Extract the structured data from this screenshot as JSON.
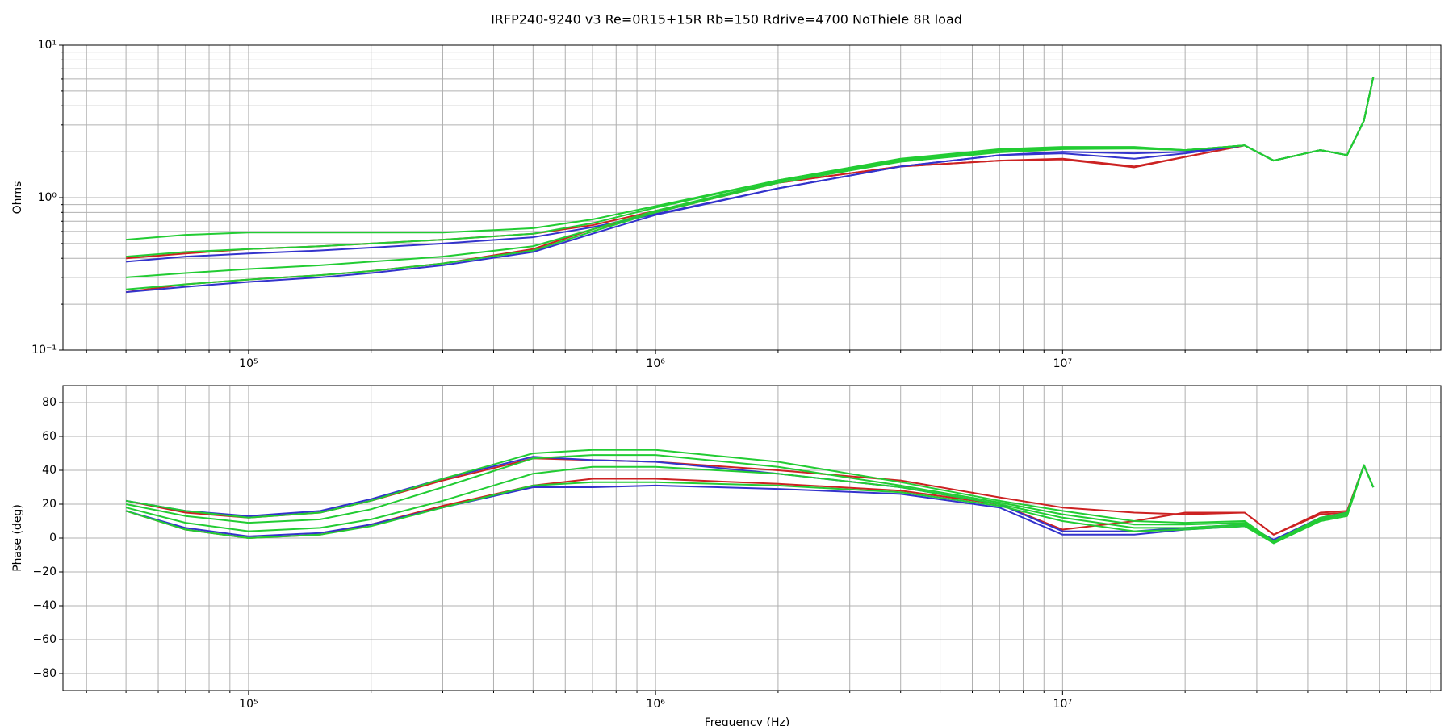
{
  "chart_data": [
    {
      "type": "line",
      "title": "IRFP240-9240 v3 Re=0R15+15R Rb=150 Rdrive=4700 NoThiele 8R load",
      "ylabel": "Ohms",
      "xlog": true,
      "ylog": true,
      "grid": true,
      "xlim": [
        35000,
        85000000
      ],
      "xticks": [
        {
          "value": 100000,
          "label": "10⁵"
        },
        {
          "value": 1000000,
          "label": "10⁶"
        },
        {
          "value": 10000000,
          "label": "10⁷"
        }
      ],
      "xminorticks": [
        40000,
        50000,
        60000,
        70000,
        80000,
        90000,
        200000,
        300000,
        400000,
        500000,
        600000,
        700000,
        800000,
        900000,
        2000000,
        3000000,
        4000000,
        5000000,
        6000000,
        7000000,
        8000000,
        9000000,
        20000000,
        30000000,
        40000000,
        50000000,
        60000000,
        70000000,
        80000000
      ],
      "ylim": [
        0.1,
        10
      ],
      "yticks": [
        {
          "value": 0.1,
          "label": "10⁻¹"
        },
        {
          "value": 1,
          "label": "10⁰"
        },
        {
          "value": 10,
          "label": "10¹"
        }
      ],
      "yminorticks": [
        0.2,
        0.3,
        0.4,
        0.5,
        0.6,
        0.7,
        0.8,
        0.9,
        2,
        3,
        4,
        5,
        6,
        7,
        8,
        9
      ],
      "x": [
        50000,
        70000,
        100000,
        150000,
        200000,
        300000,
        500000,
        700000,
        1000000,
        2000000,
        4000000,
        7000000,
        10000000,
        15000000,
        20000000,
        28000000,
        33000000,
        43000000,
        50000000,
        55000000,
        58000000
      ],
      "series": [
        {
          "color": "#cc2222",
          "values": [
            0.4,
            0.43,
            0.46,
            0.48,
            0.5,
            0.53,
            0.58,
            0.66,
            0.82,
            1.25,
            1.6,
            1.75,
            1.78,
            1.58,
            1.85,
            2.2,
            1.75,
            2.05,
            1.9,
            3.2,
            6.2
          ]
        },
        {
          "color": "#cc2222",
          "values": [
            0.24,
            0.27,
            0.29,
            0.31,
            0.33,
            0.37,
            0.46,
            0.62,
            0.8,
            1.25,
            1.6,
            1.75,
            1.8,
            1.6,
            1.85,
            2.2,
            1.75,
            2.05,
            1.9,
            3.2,
            6.2
          ]
        },
        {
          "color": "#3333cc",
          "values": [
            0.38,
            0.41,
            0.43,
            0.45,
            0.47,
            0.5,
            0.55,
            0.64,
            0.78,
            1.15,
            1.6,
            1.9,
            2.0,
            1.95,
            2.0,
            2.2,
            1.75,
            2.05,
            1.9,
            3.2,
            6.2
          ]
        },
        {
          "color": "#3333cc",
          "values": [
            0.24,
            0.26,
            0.28,
            0.3,
            0.32,
            0.36,
            0.44,
            0.58,
            0.77,
            1.15,
            1.6,
            1.9,
            1.95,
            1.8,
            1.95,
            2.2,
            1.75,
            2.05,
            1.9,
            3.2,
            6.2
          ]
        },
        {
          "color": "#22cc33",
          "values": [
            0.53,
            0.57,
            0.59,
            0.59,
            0.59,
            0.59,
            0.63,
            0.72,
            0.88,
            1.3,
            1.8,
            2.08,
            2.15,
            2.15,
            2.05,
            2.2,
            1.75,
            2.05,
            1.9,
            3.2,
            6.2
          ]
        },
        {
          "color": "#22cc33",
          "values": [
            0.41,
            0.44,
            0.46,
            0.48,
            0.5,
            0.53,
            0.58,
            0.68,
            0.86,
            1.3,
            1.78,
            2.05,
            2.12,
            2.12,
            2.05,
            2.2,
            1.75,
            2.05,
            1.9,
            3.2,
            6.2
          ]
        },
        {
          "color": "#22cc33",
          "values": [
            0.3,
            0.32,
            0.34,
            0.36,
            0.38,
            0.41,
            0.48,
            0.62,
            0.82,
            1.28,
            1.75,
            2.0,
            2.1,
            2.1,
            2.05,
            2.2,
            1.75,
            2.05,
            1.9,
            3.2,
            6.2
          ]
        },
        {
          "color": "#22cc33",
          "values": [
            0.25,
            0.27,
            0.29,
            0.31,
            0.33,
            0.37,
            0.45,
            0.6,
            0.8,
            1.25,
            1.72,
            1.98,
            2.08,
            2.1,
            2.05,
            2.2,
            1.75,
            2.05,
            1.9,
            3.2,
            6.2
          ]
        }
      ]
    },
    {
      "type": "line",
      "xlabel": "Frequency (Hz)",
      "ylabel": "Phase (deg)",
      "xlog": true,
      "ylog": false,
      "grid": true,
      "xlim": [
        35000,
        85000000
      ],
      "xticks": [
        {
          "value": 100000,
          "label": "10⁵"
        },
        {
          "value": 1000000,
          "label": "10⁶"
        },
        {
          "value": 10000000,
          "label": "10⁷"
        }
      ],
      "xminorticks": [
        40000,
        50000,
        60000,
        70000,
        80000,
        90000,
        200000,
        300000,
        400000,
        500000,
        600000,
        700000,
        800000,
        900000,
        2000000,
        3000000,
        4000000,
        5000000,
        6000000,
        7000000,
        8000000,
        9000000,
        20000000,
        30000000,
        40000000,
        50000000,
        60000000,
        70000000,
        80000000
      ],
      "ylim": [
        -90,
        90
      ],
      "yticks": [
        {
          "value": -80,
          "label": "−80"
        },
        {
          "value": -60,
          "label": "−60"
        },
        {
          "value": -40,
          "label": "−40"
        },
        {
          "value": -20,
          "label": "−20"
        },
        0,
        20,
        40,
        60,
        80
      ],
      "x": [
        50000,
        70000,
        100000,
        150000,
        200000,
        300000,
        500000,
        700000,
        1000000,
        2000000,
        4000000,
        7000000,
        10000000,
        15000000,
        20000000,
        28000000,
        33000000,
        43000000,
        50000000,
        55000000,
        58000000
      ],
      "series": [
        {
          "color": "#cc2222",
          "values": [
            22,
            15,
            12,
            15,
            22,
            34,
            47,
            46,
            45,
            40,
            34,
            24,
            18,
            15,
            14,
            15,
            2,
            15,
            16,
            43,
            30
          ]
        },
        {
          "color": "#cc2222",
          "values": [
            16,
            5,
            0,
            2,
            8,
            19,
            31,
            35,
            35,
            32,
            28,
            20,
            5,
            10,
            15,
            15,
            2,
            14,
            15,
            43,
            30
          ]
        },
        {
          "color": "#3333cc",
          "values": [
            22,
            16,
            13,
            16,
            23,
            35,
            48,
            46,
            45,
            38,
            30,
            20,
            4,
            4,
            6,
            8,
            -1,
            12,
            15,
            43,
            30
          ]
        },
        {
          "color": "#3333cc",
          "values": [
            16,
            6,
            1,
            3,
            8,
            18,
            30,
            30,
            31,
            29,
            26,
            18,
            2,
            2,
            5,
            7,
            -1,
            11,
            14,
            43,
            30
          ]
        },
        {
          "color": "#22cc33",
          "values": [
            22,
            16,
            12,
            15,
            22,
            35,
            50,
            52,
            52,
            45,
            33,
            22,
            16,
            10,
            9,
            10,
            -2,
            12,
            15,
            43,
            30
          ]
        },
        {
          "color": "#22cc33",
          "values": [
            20,
            13,
            9,
            11,
            17,
            30,
            47,
            49,
            49,
            42,
            31,
            21,
            14,
            8,
            8,
            9,
            -3,
            11,
            14,
            43,
            30
          ]
        },
        {
          "color": "#22cc33",
          "values": [
            18,
            9,
            4,
            6,
            11,
            22,
            38,
            42,
            42,
            38,
            30,
            20,
            12,
            6,
            6,
            8,
            -3,
            10,
            13,
            43,
            30
          ]
        },
        {
          "color": "#22cc33",
          "values": [
            16,
            5,
            0,
            2,
            7,
            18,
            31,
            33,
            33,
            31,
            27,
            19,
            10,
            4,
            5,
            7,
            -3,
            10,
            13,
            43,
            30
          ]
        }
      ]
    }
  ]
}
